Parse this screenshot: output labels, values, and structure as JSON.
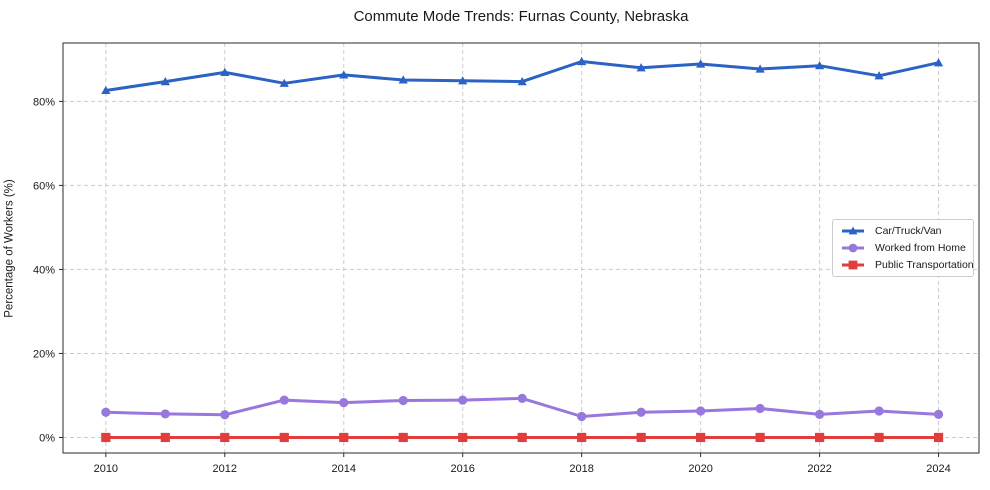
{
  "chart_data": {
    "type": "line",
    "title": "Commute Mode Trends: Furnas County, Nebraska",
    "ylabel": "Percentage of Workers (%)",
    "xlabel": "",
    "x": [
      2010,
      2011,
      2012,
      2013,
      2014,
      2015,
      2016,
      2017,
      2018,
      2019,
      2020,
      2021,
      2022,
      2023,
      2024
    ],
    "series": [
      {
        "name": "Car/Truck/Van",
        "color": "#2b62c3",
        "marker": "triangle",
        "values": [
          82.6,
          84.7,
          86.9,
          84.3,
          86.3,
          85.1,
          84.9,
          84.7,
          89.5,
          88.0,
          88.9,
          87.7,
          88.5,
          86.1,
          89.2
        ]
      },
      {
        "name": "Worked from Home",
        "color": "#9878dd",
        "marker": "circle",
        "values": [
          6.0,
          5.6,
          5.4,
          8.9,
          8.3,
          8.8,
          8.9,
          9.3,
          5.0,
          6.0,
          6.3,
          6.9,
          5.5,
          6.3,
          5.5
        ]
      },
      {
        "name": "Public Transportation",
        "color": "#e13d3d",
        "marker": "square",
        "values": [
          0.0,
          0.0,
          0.0,
          0.0,
          0.0,
          0.0,
          0.0,
          0.0,
          0.0,
          0.0,
          0.0,
          0.0,
          0.0,
          0.0,
          0.0
        ]
      }
    ],
    "x_ticks": [
      2010,
      2012,
      2014,
      2016,
      2018,
      2020,
      2022,
      2024
    ],
    "x_tick_labels": [
      "2010",
      "2012",
      "2014",
      "2016",
      "2018",
      "2020",
      "2022",
      "2024"
    ],
    "y_ticks": [
      0,
      20,
      40,
      60,
      80
    ],
    "y_tick_labels": [
      "0%",
      "20%",
      "40%",
      "60%",
      "80%"
    ],
    "xlim": [
      2009.28,
      2024.68
    ],
    "ylim": [
      -3.7,
      93.9
    ],
    "grid": true,
    "legend_position": "center-right",
    "styles": {
      "grid_color": "#cdcdcd",
      "spine_color": "#2b2b2b",
      "tick_label_color": "#1a1a1a",
      "background": "#ffffff",
      "line_width": 3
    }
  }
}
